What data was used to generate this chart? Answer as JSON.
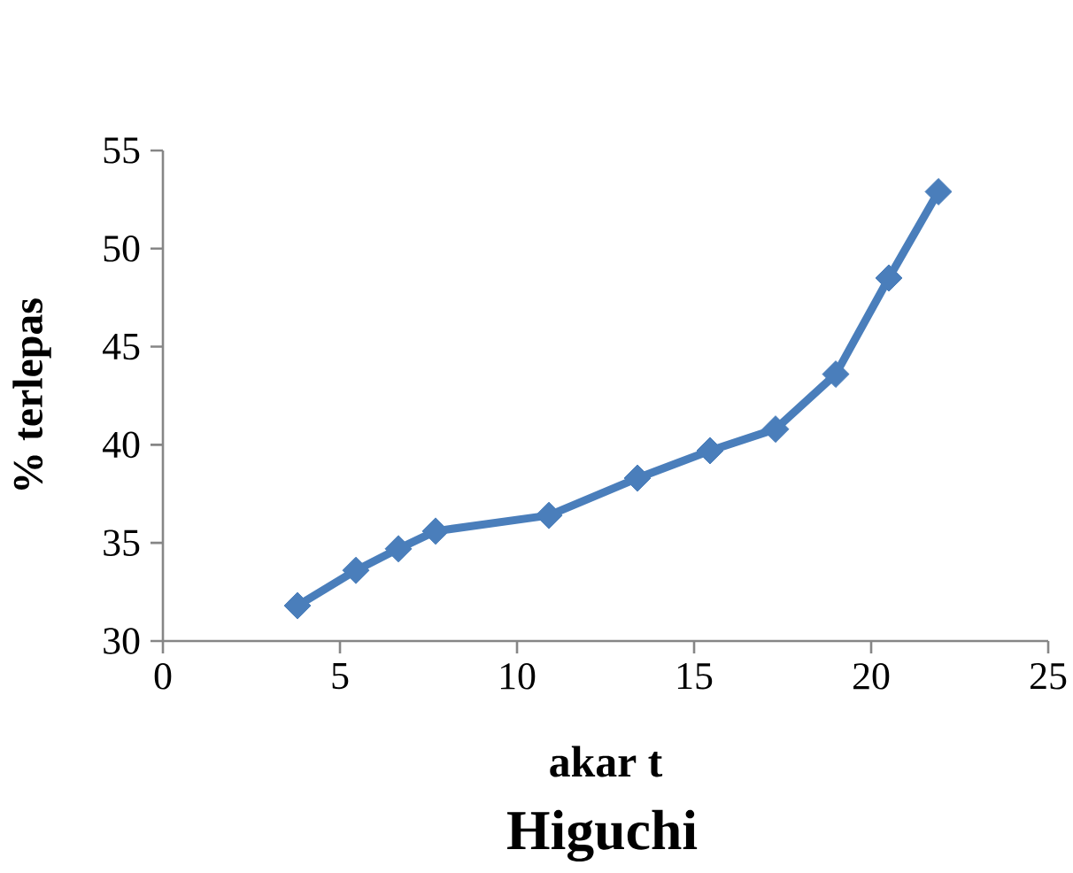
{
  "chart_data": {
    "type": "line",
    "title": "Higuchi",
    "xlabel": "akar t",
    "ylabel": "% terlepas",
    "x": [
      3.8,
      5.45,
      6.65,
      7.7,
      10.9,
      13.4,
      15.45,
      17.3,
      19.0,
      20.5,
      21.9
    ],
    "series": [
      {
        "color": "#4a7ebb",
        "values": [
          31.8,
          33.6,
          34.7,
          35.6,
          36.4,
          38.3,
          39.7,
          40.8,
          43.6,
          48.5,
          52.9
        ]
      }
    ],
    "xlim": [
      0,
      25
    ],
    "xticks": [
      0,
      5,
      10,
      15,
      20,
      25
    ],
    "ylim": [
      30,
      55
    ],
    "yticks": [
      30,
      35,
      40,
      45,
      50,
      55
    ],
    "marker": "diamond",
    "line_style": "solid"
  }
}
